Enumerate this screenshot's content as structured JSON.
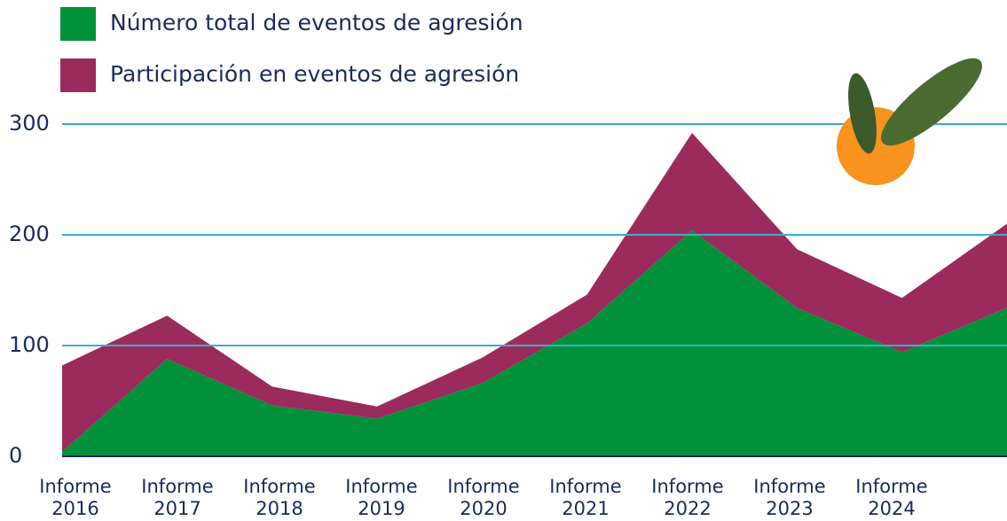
{
  "chart_data": {
    "type": "stacked-area",
    "categories": [
      "Informe 2016",
      "Informe 2017",
      "Informe 2018",
      "Informe 2019",
      "Informe 2020",
      "Informe 2021",
      "Informe 2022",
      "Informe 2023",
      "Informe 2024",
      null
    ],
    "series": [
      {
        "name": "Número total de eventos de agresión",
        "color": "#00913a",
        "values": [
          4,
          88,
          46,
          34,
          66,
          120,
          204,
          134,
          94,
          134
        ]
      },
      {
        "name": "Participación en eventos de agresión",
        "color": "#9b2b5c",
        "values": [
          78,
          39,
          17,
          11,
          23,
          26,
          88,
          53,
          49,
          76
        ]
      }
    ],
    "ylim": [
      0,
      300
    ],
    "yticks": [
      0,
      100,
      200,
      300
    ],
    "grid": true,
    "legend": "top-left"
  }
}
